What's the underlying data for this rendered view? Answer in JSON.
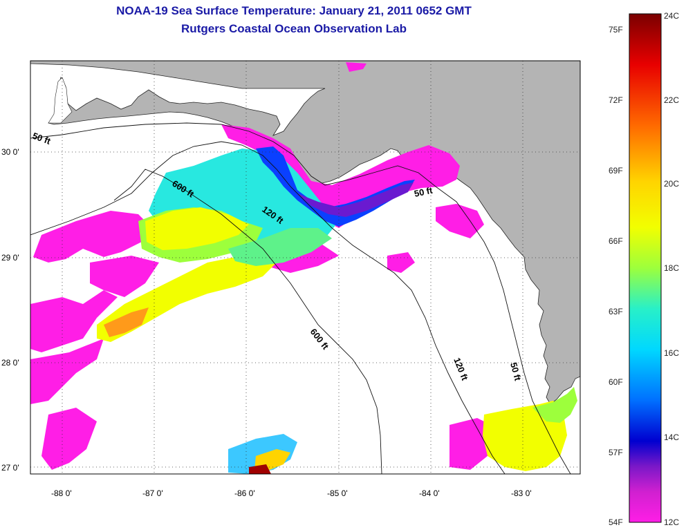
{
  "title": "NOAA-19 Sea Surface Temperature:  January 21, 2011 0652 GMT",
  "subtitle": "Rutgers Coastal Ocean Observation Lab",
  "map": {
    "lon_ticks": [
      "-88 0'",
      "-87 0'",
      "-86 0'",
      "-85 0'",
      "-84 0'",
      "-83 0'"
    ],
    "lat_ticks": [
      "30 0'",
      "29 0'",
      "28 0'",
      "27 0'"
    ],
    "contour_labels": {
      "c50_west": "50 ft",
      "c600_north": "600 ft",
      "c120_north": "120 ft",
      "c50_east": "50 ft",
      "c600_south": "600 ft",
      "c120_south": "120 ft",
      "c50_south": "50 ft"
    },
    "land_color": "#b4b4b4",
    "no_data_color": "#ffffff"
  },
  "colorbar": {
    "fahrenheit_labels": [
      "75F",
      "72F",
      "69F",
      "66F",
      "63F",
      "60F",
      "57F",
      "54F"
    ],
    "celsius_labels": [
      "24C",
      "22C",
      "20C",
      "18C",
      "16C",
      "14C",
      "12C"
    ],
    "colors_top_to_bottom": [
      "#7a0000",
      "#e80000",
      "#ff6a00",
      "#ffd400",
      "#f2ff00",
      "#9dff3c",
      "#28f0c8",
      "#00d8ff",
      "#0070ff",
      "#0000d0",
      "#7a18c8",
      "#d020d0",
      "#ff1ee6"
    ]
  }
}
